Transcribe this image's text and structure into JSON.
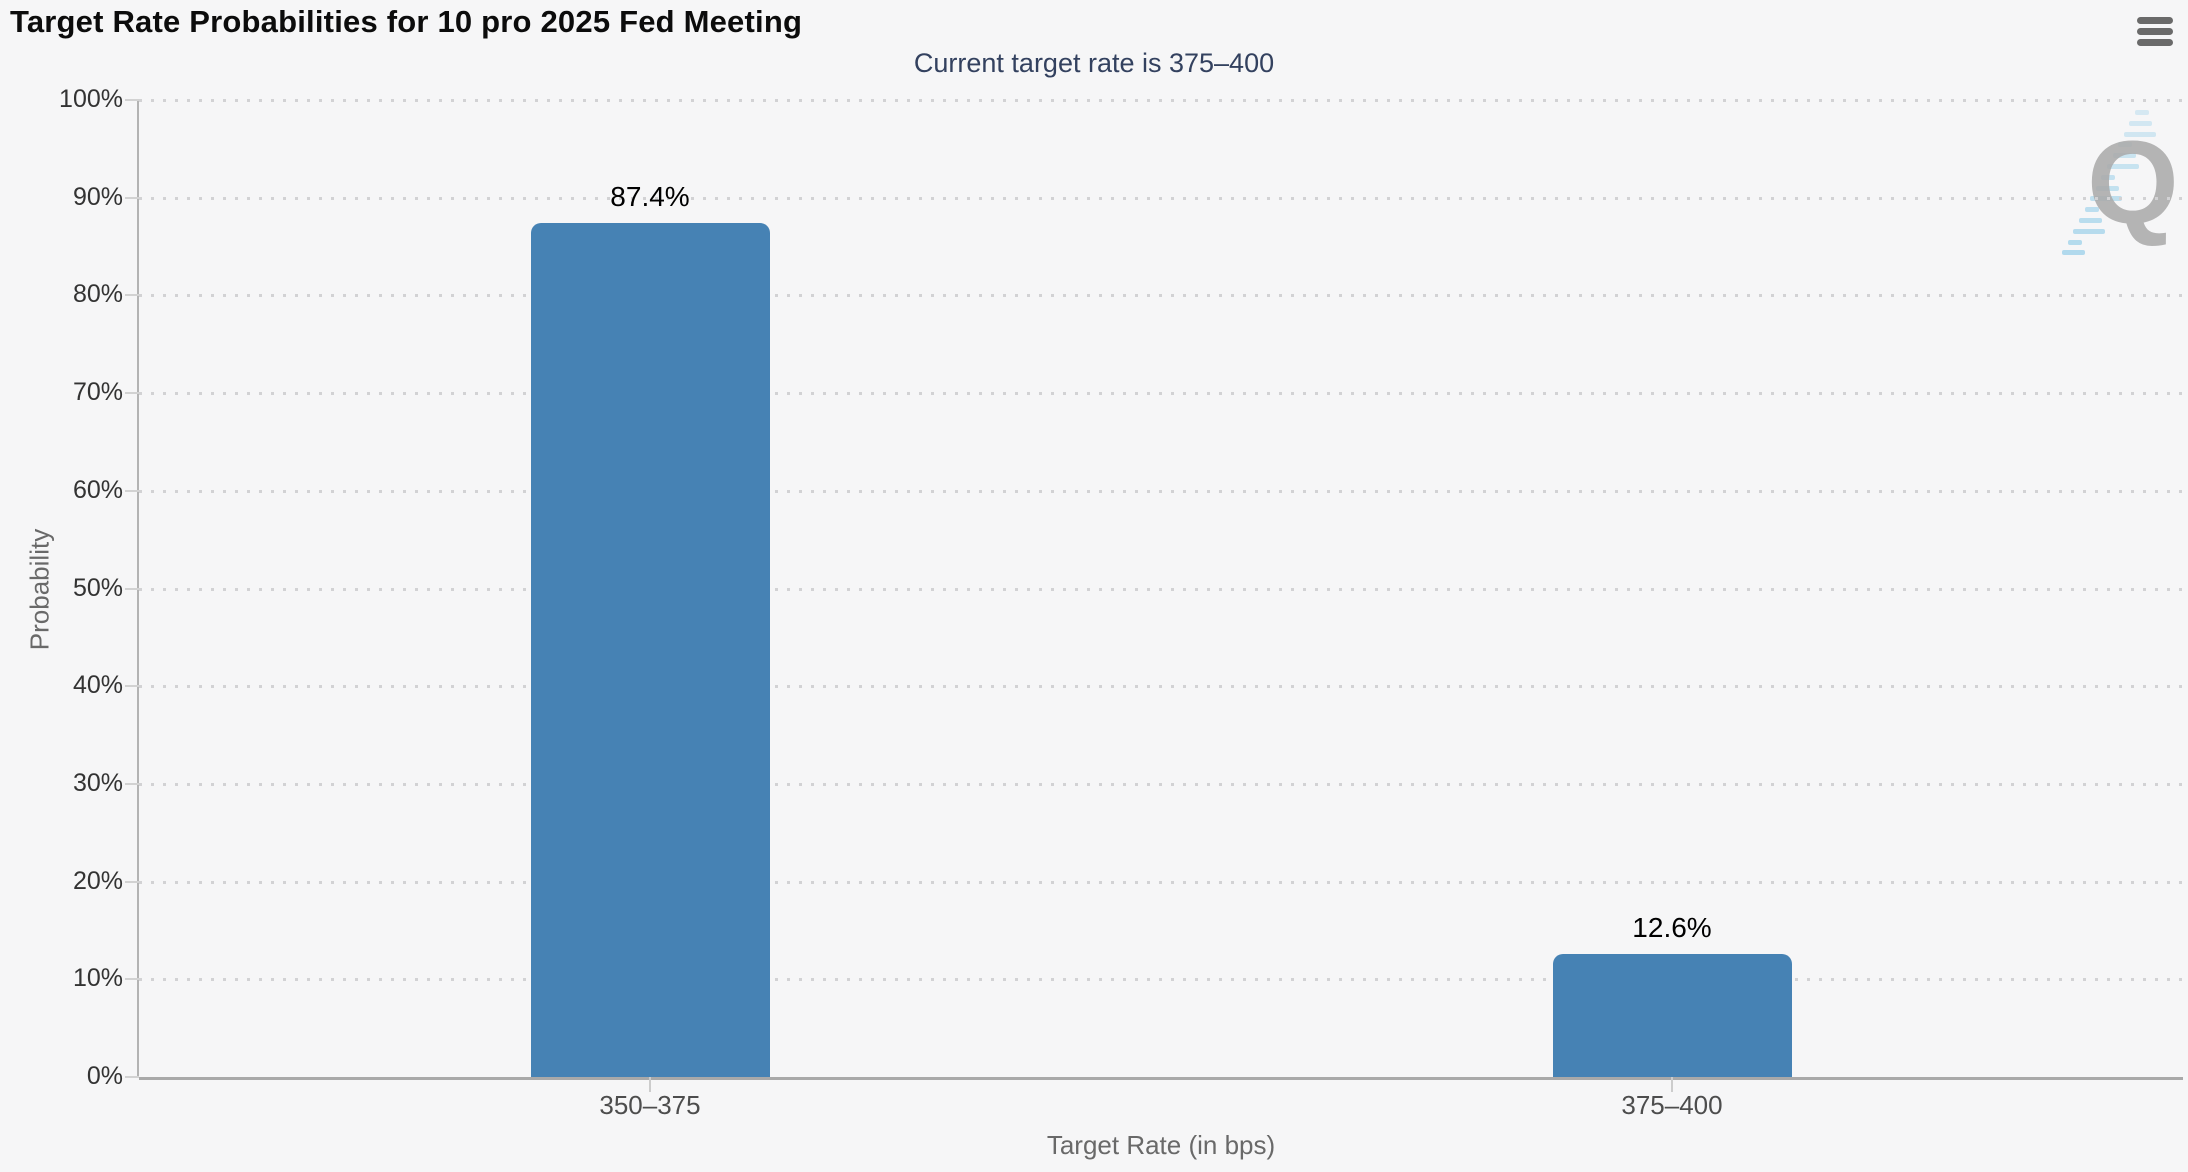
{
  "header": {
    "title": "Target Rate Probabilities for 10 pro 2025 Fed Meeting",
    "subtitle": "Current target rate is 375–400"
  },
  "menu": {
    "icon": "hamburger-menu-icon"
  },
  "watermark": {
    "letter": "Q"
  },
  "chart_data": {
    "type": "bar",
    "title": "Target Rate Probabilities for 10 pro 2025 Fed Meeting",
    "subtitle": "Current target rate is 375–400",
    "categories": [
      "350–375",
      "375–400"
    ],
    "values": [
      87.4,
      12.6
    ],
    "data_labels": [
      "87.4%",
      "12.6%"
    ],
    "xlabel": "Target Rate (in bps)",
    "ylabel": "Probability",
    "ylim": [
      0,
      100
    ],
    "y_tick_step": 10,
    "y_tick_labels": [
      "0%",
      "10%",
      "20%",
      "30%",
      "40%",
      "50%",
      "60%",
      "70%",
      "80%",
      "90%",
      "100%"
    ],
    "grid": "dotted-horizontal",
    "legend": "none",
    "colors": {
      "bar": "#4682b4",
      "background": "#f6f6f7",
      "subtitle_text": "#33415f",
      "title_text": "#0c0c0c",
      "axis_label_text": "#333333",
      "axis_title_text": "#696969",
      "gridline": "#d2d2d4"
    }
  }
}
